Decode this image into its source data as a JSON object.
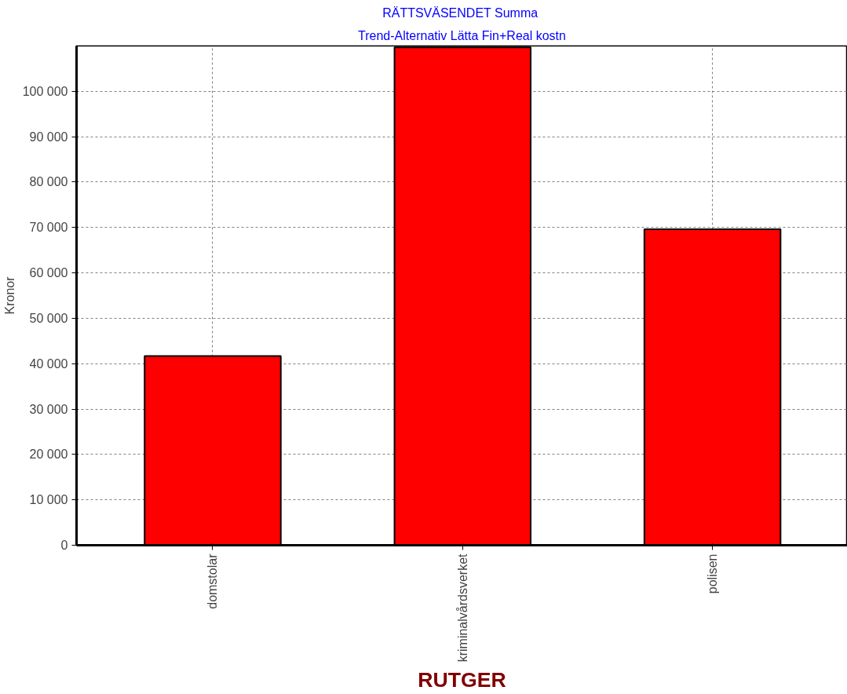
{
  "chart_data": {
    "type": "bar",
    "title": "RÄTTSVÄSENDET  Summa",
    "subtitle": "Trend-Alternativ Lätta Fin+Real kostn",
    "xlabel": "RUTGER",
    "ylabel": "Kronor",
    "categories": [
      "domstolar",
      "kriminalvårdsverket",
      "polisen"
    ],
    "series": [
      {
        "color": "#ff0000",
        "values": [
          41700,
          109700,
          69600
        ]
      }
    ],
    "ylim": [
      0,
      110000
    ],
    "yticks": [
      {
        "value": 0,
        "label": "0"
      },
      {
        "value": 10000,
        "label": "10 000"
      },
      {
        "value": 20000,
        "label": "20 000"
      },
      {
        "value": 30000,
        "label": "30 000"
      },
      {
        "value": 40000,
        "label": "40 000"
      },
      {
        "value": 50000,
        "label": "50 000"
      },
      {
        "value": 60000,
        "label": "60 000"
      },
      {
        "value": 70000,
        "label": "70 000"
      },
      {
        "value": 80000,
        "label": "80 000"
      },
      {
        "value": 90000,
        "label": "90 000"
      },
      {
        "value": 100000,
        "label": "100 000"
      }
    ],
    "grid": true
  }
}
